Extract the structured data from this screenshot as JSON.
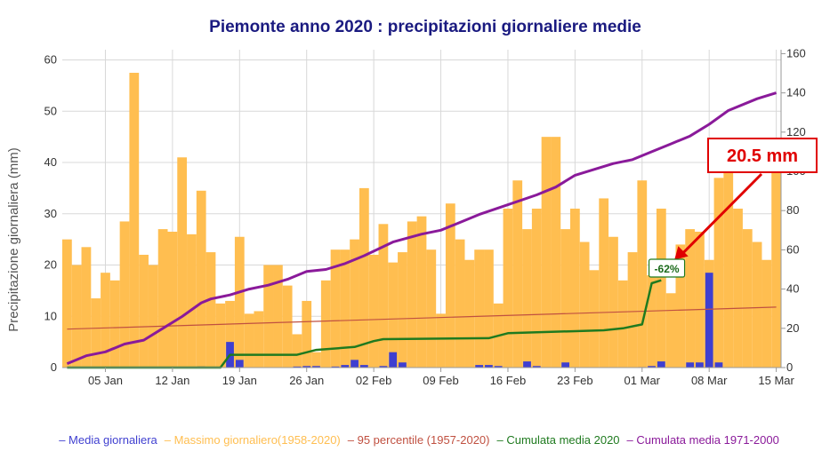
{
  "chart_data": {
    "type": "bar",
    "title": "Piemonte anno 2020 : precipitazioni giornaliere medie",
    "ylabel": "Precipitazione giornaliera (mm)",
    "ylim": [
      0,
      62
    ],
    "y2lim": [
      0,
      162
    ],
    "yticks": [
      0,
      10,
      20,
      30,
      40,
      50,
      60
    ],
    "y2ticks": [
      0,
      20,
      40,
      60,
      80,
      100,
      120,
      140,
      160
    ],
    "xlim": [
      0.5,
      75.5
    ],
    "xticks": [
      {
        "label": "05 Jan",
        "day": 5
      },
      {
        "label": "12 Jan",
        "day": 12
      },
      {
        "label": "19 Jan",
        "day": 19
      },
      {
        "label": "26 Jan",
        "day": 26
      },
      {
        "label": "02 Feb",
        "day": 33
      },
      {
        "label": "09 Feb",
        "day": 40
      },
      {
        "label": "16 Feb",
        "day": 47
      },
      {
        "label": "23 Feb",
        "day": 54
      },
      {
        "label": "01 Mar",
        "day": 61
      },
      {
        "label": "08 Mar",
        "day": 68
      },
      {
        "label": "15 Mar",
        "day": 75
      }
    ],
    "colors": {
      "media": "#3f3fd0",
      "massimo": "#ffbe50",
      "percentile": "#c05040",
      "cumulata2020": "#1f7a1f",
      "cumulata7100": "#8a1a9a"
    },
    "series": [
      {
        "name": "Massimo giornaliero(1958-2020)",
        "kind": "bar",
        "values": [
          25,
          20,
          23.5,
          13.5,
          18.5,
          17,
          28.5,
          57.5,
          22,
          20,
          27,
          26.5,
          41,
          26,
          34.5,
          22.5,
          12.5,
          13,
          25.5,
          10.5,
          11,
          20,
          20,
          16,
          6.5,
          13,
          3,
          17,
          23,
          23,
          25,
          35,
          22,
          28,
          20.5,
          22.5,
          28.5,
          29.5,
          23,
          10.5,
          32,
          25,
          21,
          23,
          23,
          12.5,
          31,
          36.5,
          27,
          31,
          45,
          45,
          27,
          31,
          24.5,
          19,
          33,
          25.5,
          17,
          22.5,
          36.5,
          18,
          31,
          14.5,
          24,
          27,
          26.5,
          21,
          37,
          38,
          31,
          27,
          24.5,
          21,
          40
        ]
      },
      {
        "name": "Media giornaliera",
        "kind": "bar",
        "values": [
          0,
          0,
          0,
          0,
          0,
          0,
          0,
          0,
          0,
          0,
          0,
          0,
          0,
          0,
          0.2,
          0,
          0,
          5,
          1.5,
          0,
          0,
          0,
          0,
          0,
          0.2,
          0.3,
          0.3,
          0,
          0.2,
          0.5,
          1.5,
          0.5,
          0,
          0.3,
          3,
          1,
          0,
          0,
          0,
          0,
          0,
          0,
          0,
          0.5,
          0.5,
          0.3,
          0,
          0,
          1.2,
          0.3,
          0,
          0,
          1,
          0,
          0,
          0,
          0,
          0,
          0,
          0,
          0.1,
          0.3,
          1.2,
          0,
          0,
          1,
          1,
          18.5,
          1,
          0,
          0,
          0,
          0,
          0,
          0
        ]
      },
      {
        "name": "95 percentile (1957-2020)",
        "kind": "line",
        "x": [
          1,
          75
        ],
        "values": [
          7.5,
          11.8
        ]
      },
      {
        "name": "Cumulata media 2020",
        "kind": "line",
        "axis": "right",
        "x": [
          1,
          15,
          17,
          18,
          25,
          27,
          31,
          33,
          34,
          45,
          47,
          57,
          59,
          61,
          62,
          63
        ],
        "values": [
          0,
          0,
          0,
          6.5,
          6.5,
          9,
          10.5,
          13.5,
          14.5,
          15,
          17.5,
          19,
          20,
          22,
          43,
          44.5
        ]
      },
      {
        "name": "Cumulata media 1971-2000",
        "kind": "line",
        "axis": "right",
        "x": [
          1,
          3,
          5,
          7,
          9,
          11,
          13,
          15,
          16,
          18,
          20,
          22,
          24,
          26,
          28,
          30,
          32,
          35,
          38,
          40,
          42,
          44,
          47,
          50,
          52,
          54,
          56,
          58,
          60,
          62,
          64,
          66,
          68,
          70,
          73,
          75
        ],
        "values": [
          2,
          6,
          8,
          12,
          14,
          20,
          26,
          33,
          35,
          37,
          40,
          42,
          45,
          49,
          50,
          53,
          57,
          64,
          68,
          70,
          74,
          78,
          83,
          88,
          92,
          98,
          101,
          104,
          106,
          110,
          114,
          118,
          124,
          131,
          137,
          140
        ]
      }
    ],
    "legend": [
      "Media giornaliera",
      "Massimo giornaliero(1958-2020)",
      "95 percentile (1957-2020)",
      "Cumulata media 2020",
      "Cumulata media 1971-2000"
    ],
    "legend_position": "bottom",
    "grid": true,
    "annotations": [
      {
        "text": "20.5 mm",
        "style": "red-box",
        "points_to_day": 64,
        "points_to_value": 21
      },
      {
        "text": "-62%",
        "style": "green-box",
        "day": 62,
        "value_right": 43
      }
    ]
  }
}
